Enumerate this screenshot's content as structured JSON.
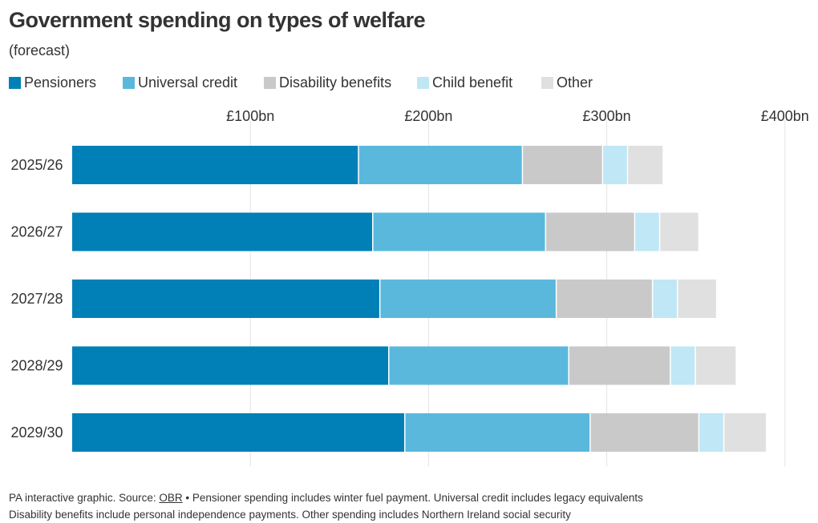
{
  "title": "Government spending on types of welfare",
  "subtitle": "(forecast)",
  "footer": {
    "source_prefix": "PA interactive graphic. Source: ",
    "source_link": "OBR",
    "line1_rest": " • Pensioner spending includes winter fuel payment. Universal credit includes legacy equivalents",
    "line2": "Disability benefits include personal independence payments. Other spending includes Northern Ireland social security"
  },
  "chart_data": {
    "type": "bar",
    "orientation": "horizontal",
    "stacked": true,
    "title": "Government spending on types of welfare",
    "subtitle": "(forecast)",
    "categories": [
      "2025/26",
      "2026/27",
      "2027/28",
      "2028/29",
      "2029/30"
    ],
    "series": [
      {
        "name": "Pensioners",
        "color": "#0080b7",
        "values": [
          161,
          169,
          173,
          178,
          187
        ]
      },
      {
        "name": "Universal credit",
        "color": "#5bb8dd",
        "values": [
          92,
          97,
          99,
          101,
          104
        ]
      },
      {
        "name": "Disability benefits",
        "color": "#c9c9c9",
        "values": [
          45,
          50,
          54,
          57,
          61
        ]
      },
      {
        "name": "Child benefit",
        "color": "#bfe7f5",
        "values": [
          14,
          14,
          14,
          14,
          14
        ]
      },
      {
        "name": "Other",
        "color": "#e0e0e0",
        "values": [
          20,
          22,
          22,
          23,
          24
        ]
      }
    ],
    "xlim": [
      0,
      400
    ],
    "xticks": [
      100,
      200,
      300,
      400
    ],
    "xtick_labels": [
      "£100bn",
      "£200bn",
      "£300bn",
      "£400bn"
    ],
    "grid": true,
    "legend_position": "top"
  }
}
